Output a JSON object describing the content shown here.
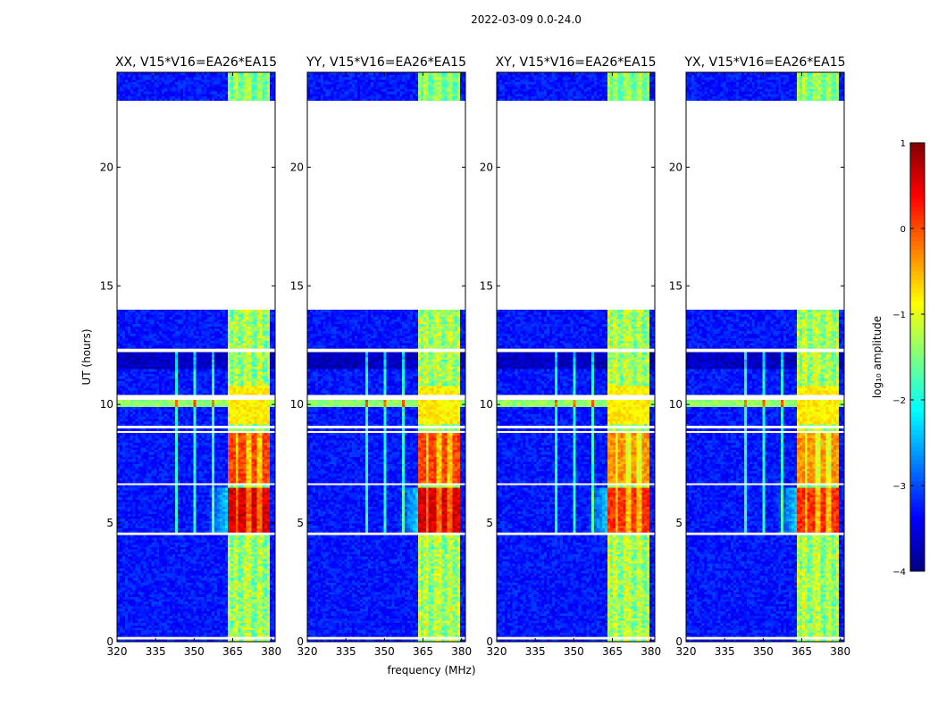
{
  "figure_title": "2022-03-09 0.0-24.0",
  "chart_data": {
    "type": "heatmap",
    "title": "2022-03-09 0.0-24.0",
    "xlabel": "frequency (MHz)",
    "ylabel": "UT (hours)",
    "xlim": [
      320,
      381.5
    ],
    "ylim": [
      0,
      24
    ],
    "x_ticks": [
      320,
      335,
      350,
      365,
      380
    ],
    "y_ticks": [
      0,
      5,
      10,
      15,
      20
    ],
    "panels": [
      {
        "title": "XX, V15*V16=EA26*EA15",
        "pol": "XX"
      },
      {
        "title": "YY, V15*V16=EA26*EA15",
        "pol": "YY"
      },
      {
        "title": "XY, V15*V16=EA26*EA15",
        "pol": "XY"
      },
      {
        "title": "YX, V15*V16=EA26*EA15",
        "pol": "YX"
      }
    ],
    "colorbar": {
      "label": "log₁₀ amplitude",
      "colormap": "jet",
      "range": [
        -4,
        1
      ],
      "ticks": [
        1,
        0,
        -1,
        -2,
        -3,
        -4
      ],
      "tick_labels": [
        "1",
        "0",
        "−1",
        "−2",
        "−3",
        "−4"
      ]
    },
    "data_gaps_hours": [
      [
        14.0,
        22.8
      ],
      [
        9.0,
        9.1
      ],
      [
        8.8,
        8.85
      ],
      [
        10.2,
        10.4
      ],
      [
        12.25,
        12.35
      ],
      [
        0.1,
        0.2
      ],
      [
        4.55,
        4.6
      ],
      [
        6.6,
        6.65
      ]
    ],
    "strong_signal_band_mhz": [
      363.5,
      379.5
    ],
    "strong_signal_hours": [
      [
        4.6,
        6.5
      ],
      [
        6.7,
        8.8
      ]
    ]
  }
}
